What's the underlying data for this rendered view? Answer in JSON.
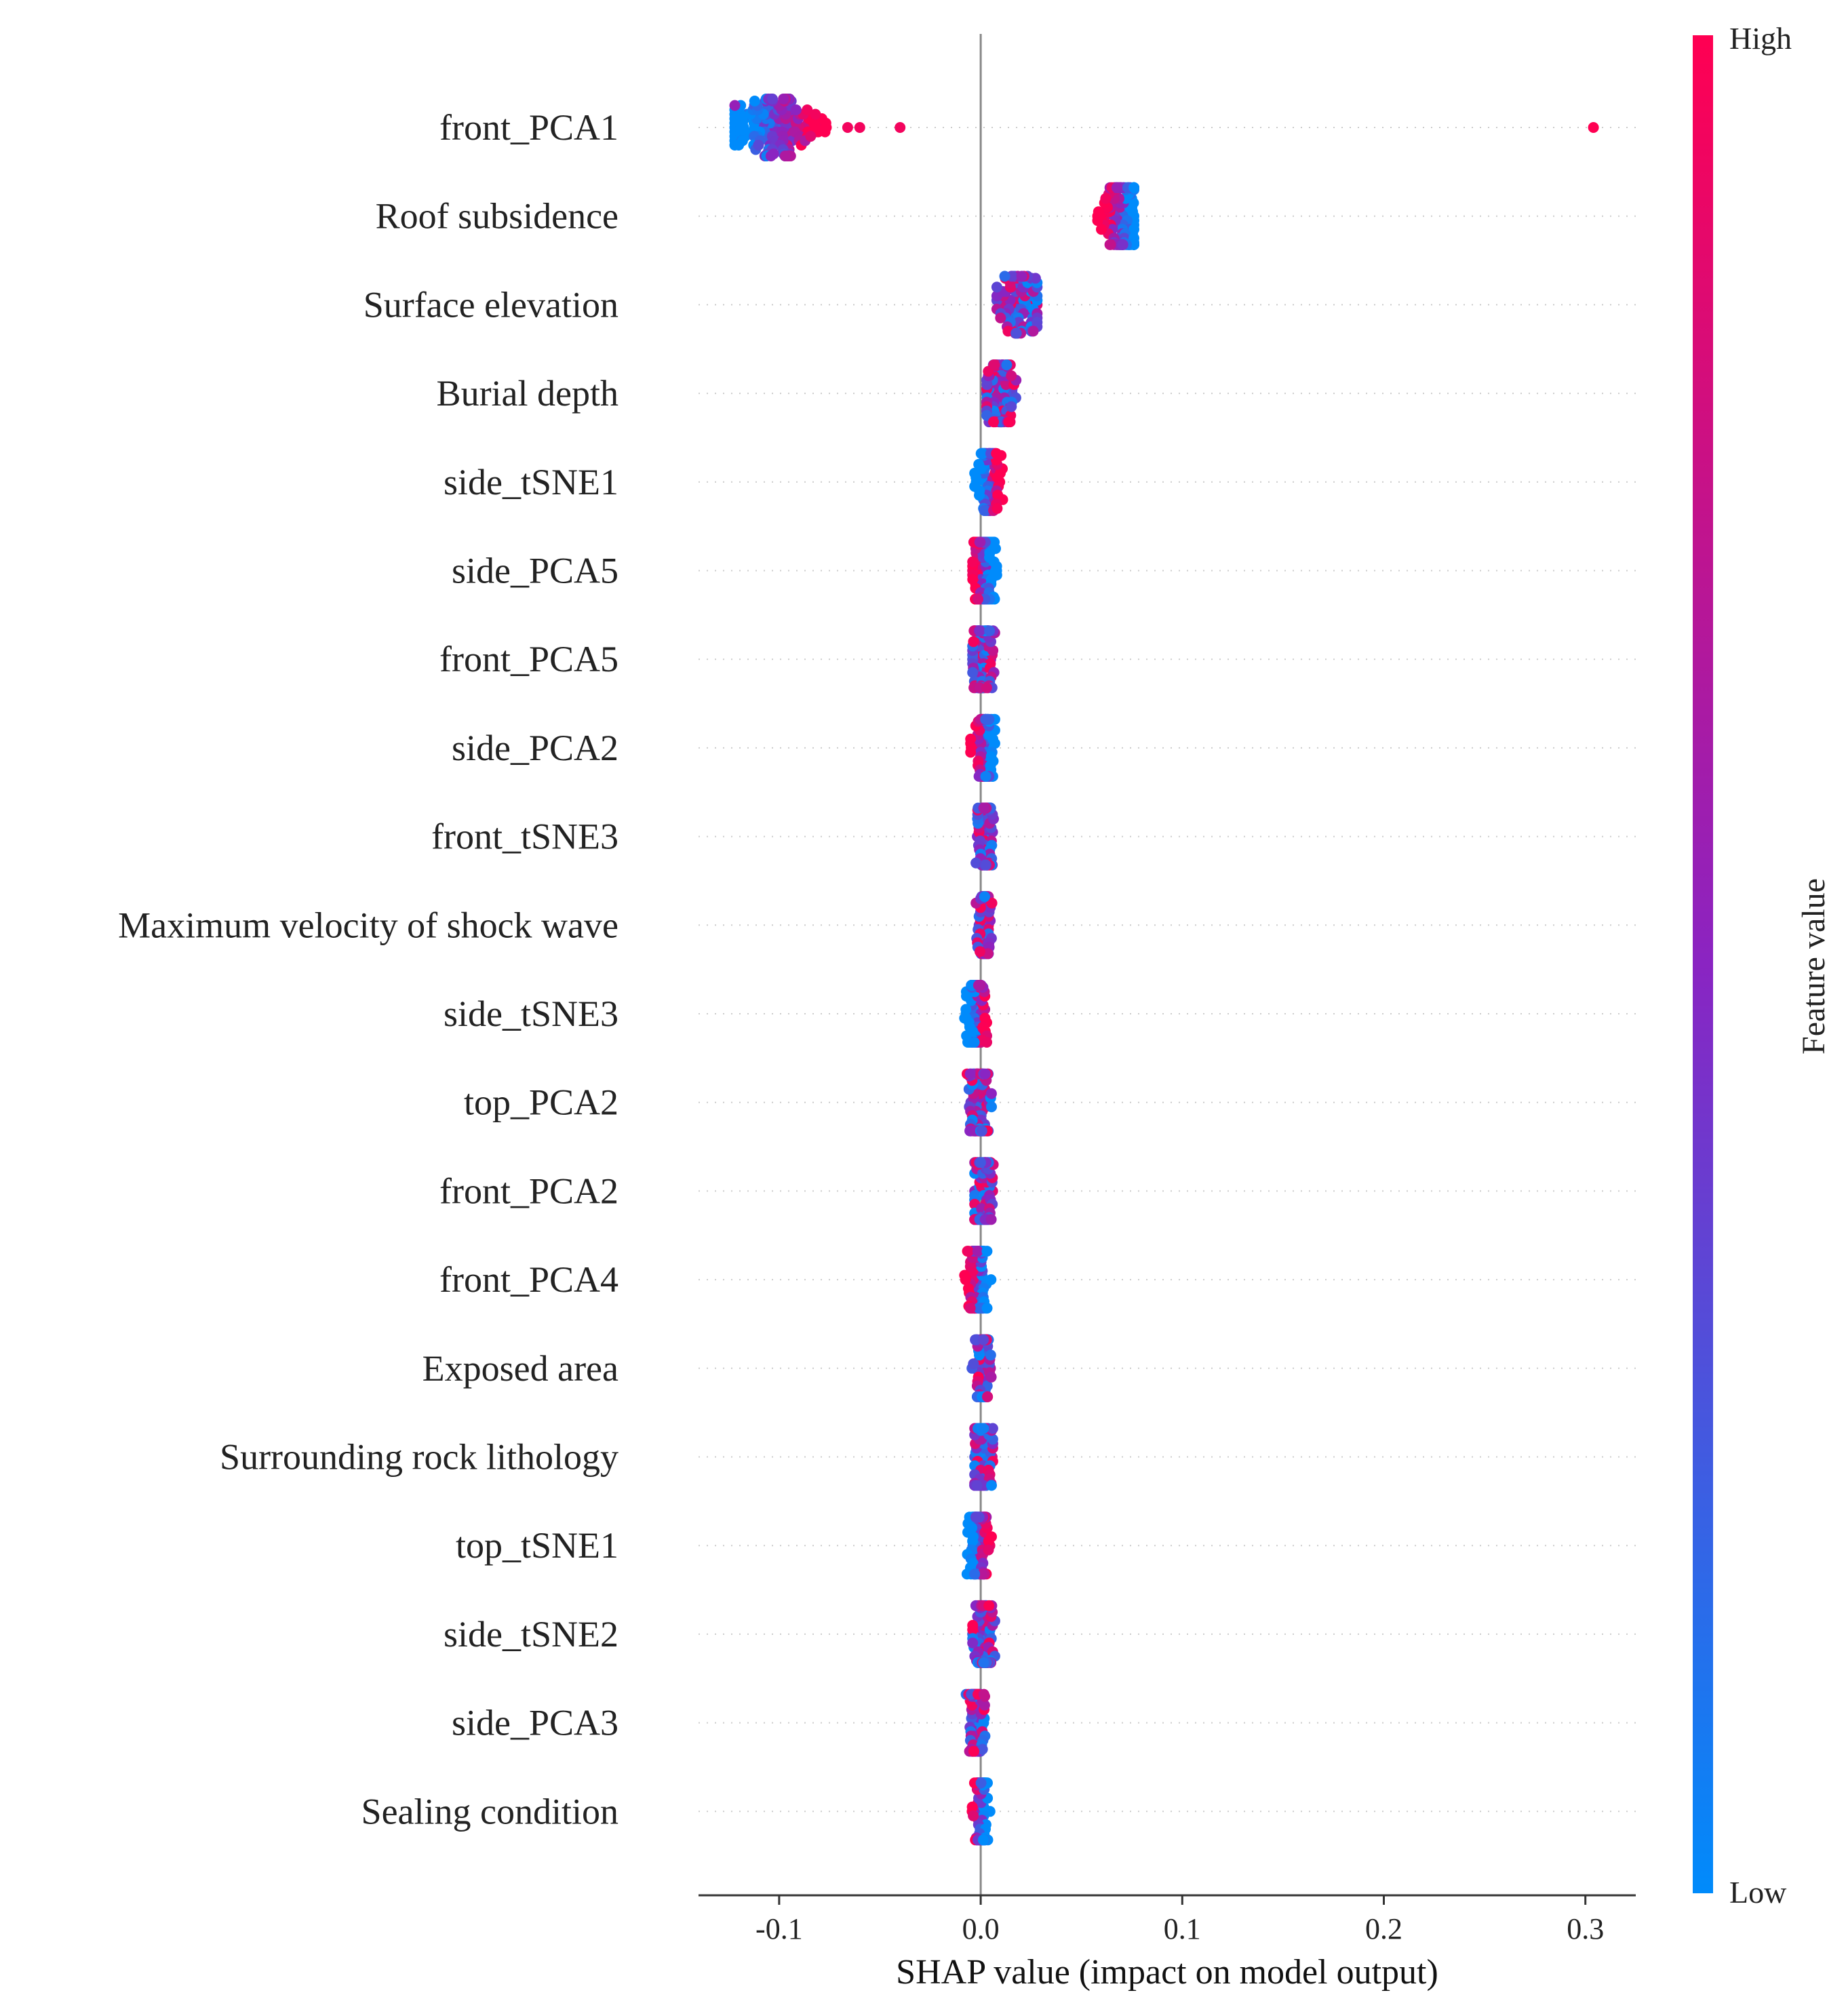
{
  "chart_data": {
    "type": "scatter",
    "subtype": "shap-beeswarm",
    "xlabel": "SHAP value (impact on model output)",
    "xlim": [
      -0.14,
      0.325
    ],
    "xticks": [
      -0.1,
      0.0,
      0.1,
      0.2,
      0.3
    ],
    "xtick_labels": [
      "-0.1",
      "0.0",
      "0.1",
      "0.2",
      "0.3"
    ],
    "colorbar": {
      "title": "Feature value",
      "high_label": "High",
      "low_label": "Low",
      "high_color": "#ff0052",
      "mid_color": "#8a24c2",
      "low_color": "#008bfb"
    },
    "features": [
      {
        "name": "front_PCA1",
        "min": -0.122,
        "max": 0.304,
        "center": -0.103,
        "width": 0.012,
        "high_side": "right",
        "outliers": [
          {
            "x": -0.082,
            "v": 0.95
          },
          {
            "x": -0.066,
            "v": 0.95
          },
          {
            "x": -0.06,
            "v": 0.95
          },
          {
            "x": -0.04,
            "v": 0.95
          },
          {
            "x": 0.304,
            "v": 1.0
          },
          {
            "x": -0.122,
            "v": 0.55
          }
        ]
      },
      {
        "name": "Roof subsidence",
        "min": 0.058,
        "max": 0.076,
        "center": 0.07,
        "width": 0.005,
        "high_side": "left",
        "outliers": [
          {
            "x": 0.058,
            "v": 1.0
          },
          {
            "x": 0.062,
            "v": 0.95
          }
        ]
      },
      {
        "name": "Surface elevation",
        "min": 0.008,
        "max": 0.028,
        "center": 0.019,
        "width": 0.006,
        "high_side": "mixed",
        "outliers": []
      },
      {
        "name": "Burial depth",
        "min": 0.003,
        "max": 0.019,
        "center": 0.01,
        "width": 0.004,
        "high_side": "mixed",
        "outliers": []
      },
      {
        "name": "side_tSNE1",
        "min": -0.003,
        "max": 0.022,
        "center": 0.004,
        "width": 0.003,
        "high_side": "right",
        "outliers": []
      },
      {
        "name": "side_PCA5",
        "min": -0.004,
        "max": 0.018,
        "center": 0.002,
        "width": 0.003,
        "high_side": "left",
        "outliers": []
      },
      {
        "name": "front_PCA5",
        "min": -0.004,
        "max": 0.009,
        "center": 0.001,
        "width": 0.003,
        "high_side": "mixed",
        "outliers": []
      },
      {
        "name": "side_PCA2",
        "min": -0.005,
        "max": 0.007,
        "center": 0.002,
        "width": 0.003,
        "high_side": "left",
        "outliers": []
      },
      {
        "name": "front_tSNE3",
        "min": -0.003,
        "max": 0.007,
        "center": 0.002,
        "width": 0.002,
        "high_side": "mixed",
        "outliers": []
      },
      {
        "name": "Maximum velocity of shock wave",
        "min": -0.003,
        "max": 0.006,
        "center": 0.002,
        "width": 0.002,
        "high_side": "mixed",
        "outliers": []
      },
      {
        "name": "side_tSNE3",
        "min": -0.009,
        "max": 0.003,
        "center": -0.002,
        "width": 0.003,
        "high_side": "right",
        "outliers": []
      },
      {
        "name": "top_PCA2",
        "min": -0.008,
        "max": 0.008,
        "center": -0.001,
        "width": 0.003,
        "high_side": "mixed",
        "outliers": []
      },
      {
        "name": "front_PCA2",
        "min": -0.003,
        "max": 0.007,
        "center": 0.001,
        "width": 0.003,
        "high_side": "mixed",
        "outliers": []
      },
      {
        "name": "front_PCA4",
        "min": -0.008,
        "max": 0.006,
        "center": -0.001,
        "width": 0.003,
        "high_side": "left",
        "outliers": []
      },
      {
        "name": "Exposed area",
        "min": -0.007,
        "max": 0.006,
        "center": 0.001,
        "width": 0.002,
        "high_side": "mixed",
        "outliers": []
      },
      {
        "name": "Surrounding rock lithology",
        "min": -0.003,
        "max": 0.006,
        "center": 0.001,
        "width": 0.003,
        "high_side": "mixed",
        "outliers": []
      },
      {
        "name": "top_tSNE1",
        "min": -0.008,
        "max": 0.009,
        "center": -0.001,
        "width": 0.003,
        "high_side": "right",
        "outliers": []
      },
      {
        "name": "side_tSNE2",
        "min": -0.004,
        "max": 0.007,
        "center": 0.001,
        "width": 0.003,
        "high_side": "mixed",
        "outliers": []
      },
      {
        "name": "side_PCA3",
        "min": -0.011,
        "max": 0.003,
        "center": -0.002,
        "width": 0.002,
        "high_side": "mixed",
        "outliers": []
      },
      {
        "name": "Sealing condition",
        "min": -0.007,
        "max": 0.006,
        "center": 0.0,
        "width": 0.002,
        "high_side": "left",
        "outliers": []
      }
    ]
  }
}
